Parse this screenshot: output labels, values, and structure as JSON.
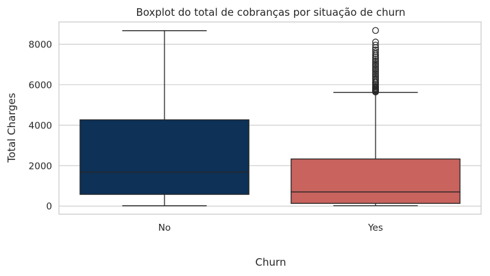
{
  "chart_data": {
    "type": "boxplot",
    "title": "Boxplot do total de cobranças por situação de churn",
    "xlabel": "Churn",
    "ylabel": "Total Charges",
    "ylim": [
      -400,
      9100
    ],
    "yticks": [
      0,
      2000,
      4000,
      6000,
      8000
    ],
    "grid": "horizontal",
    "categories": [
      "No",
      "Yes"
    ],
    "boxes": [
      {
        "category": "No",
        "color": "#0d3157",
        "whisker_low": 18,
        "q1": 580,
        "median": 1680,
        "q3": 4265,
        "whisker_high": 8670,
        "outliers": []
      },
      {
        "category": "Yes",
        "color": "#c8635e",
        "whisker_low": 19,
        "q1": 135,
        "median": 700,
        "q3": 2330,
        "whisker_high": 5620,
        "outliers": [
          5640,
          5680,
          5720,
          5760,
          5800,
          5850,
          5900,
          5960,
          6020,
          6090,
          6150,
          6230,
          6300,
          6380,
          6460,
          6540,
          6620,
          6700,
          6780,
          6860,
          6940,
          7020,
          7100,
          7180,
          7260,
          7350,
          7430,
          7520,
          7620,
          7720,
          7830,
          7960,
          8110,
          8680
        ]
      }
    ]
  }
}
